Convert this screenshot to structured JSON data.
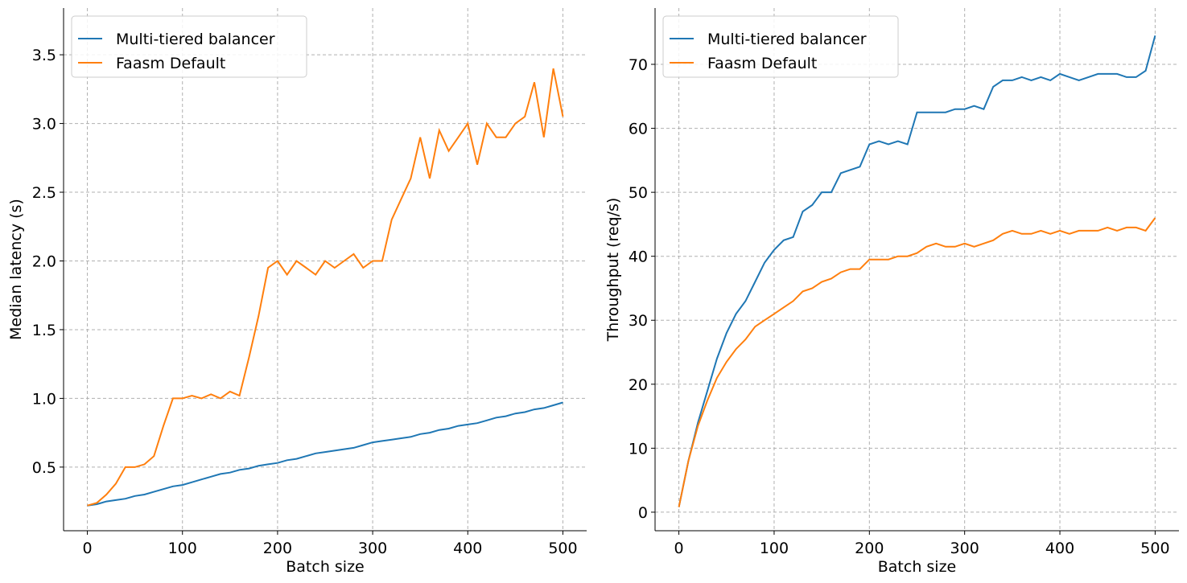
{
  "chart_data": [
    {
      "type": "line",
      "xlabel": "Batch size",
      "ylabel": "Median latency (s)",
      "x": [
        0,
        10,
        20,
        30,
        40,
        50,
        60,
        70,
        80,
        90,
        100,
        110,
        120,
        130,
        140,
        150,
        160,
        170,
        180,
        190,
        200,
        210,
        220,
        230,
        240,
        250,
        260,
        270,
        280,
        290,
        300,
        310,
        320,
        330,
        340,
        350,
        360,
        370,
        380,
        390,
        400,
        410,
        420,
        430,
        440,
        450,
        460,
        470,
        480,
        490,
        500
      ],
      "series": [
        {
          "name": "Multi-tiered balancer",
          "color": "#1f77b4",
          "values": [
            0.22,
            0.23,
            0.25,
            0.26,
            0.27,
            0.29,
            0.3,
            0.32,
            0.34,
            0.36,
            0.37,
            0.39,
            0.41,
            0.43,
            0.45,
            0.46,
            0.48,
            0.49,
            0.51,
            0.52,
            0.53,
            0.55,
            0.56,
            0.58,
            0.6,
            0.61,
            0.62,
            0.63,
            0.64,
            0.66,
            0.68,
            0.69,
            0.7,
            0.71,
            0.72,
            0.74,
            0.75,
            0.77,
            0.78,
            0.8,
            0.81,
            0.82,
            0.84,
            0.86,
            0.87,
            0.89,
            0.9,
            0.92,
            0.93,
            0.95,
            0.97
          ]
        },
        {
          "name": "Faasm Default",
          "color": "#ff7f0e",
          "values": [
            0.22,
            0.24,
            0.3,
            0.38,
            0.5,
            0.5,
            0.52,
            0.58,
            0.8,
            1.0,
            1.0,
            1.02,
            1.0,
            1.03,
            1.0,
            1.05,
            1.02,
            1.3,
            1.6,
            1.95,
            2.0,
            1.9,
            2.0,
            1.95,
            1.9,
            2.0,
            1.95,
            2.0,
            2.05,
            1.95,
            2.0,
            2.0,
            2.3,
            2.45,
            2.6,
            2.9,
            2.6,
            2.95,
            2.8,
            2.9,
            3.0,
            2.7,
            3.0,
            2.9,
            2.9,
            3.0,
            3.05,
            3.3,
            2.9,
            3.4,
            3.05
          ]
        }
      ],
      "xlim": [
        -25,
        525
      ],
      "ylim": [
        0.037,
        3.84
      ],
      "xticks": [
        0,
        100,
        200,
        300,
        400,
        500
      ],
      "yticks": [
        0.5,
        {
          "value": 1.0,
          "label": "1.0"
        },
        1.5,
        {
          "value": 2.0,
          "label": "2.0"
        },
        2.5,
        {
          "value": 3.0,
          "label": "3.0"
        },
        3.5
      ],
      "grid": true,
      "legend": "upper left"
    },
    {
      "type": "line",
      "xlabel": "Batch size",
      "ylabel": "Throughput (req/s)",
      "x": [
        0,
        10,
        20,
        30,
        40,
        50,
        60,
        70,
        80,
        90,
        100,
        110,
        120,
        130,
        140,
        150,
        160,
        170,
        180,
        190,
        200,
        210,
        220,
        230,
        240,
        250,
        260,
        270,
        280,
        290,
        300,
        310,
        320,
        330,
        340,
        350,
        360,
        370,
        380,
        390,
        400,
        410,
        420,
        430,
        440,
        450,
        460,
        470,
        480,
        490,
        500
      ],
      "series": [
        {
          "name": "Multi-tiered balancer",
          "color": "#1f77b4",
          "values": [
            0.8,
            8,
            14,
            19,
            24,
            28,
            31,
            33,
            36,
            39,
            41,
            42.5,
            43,
            47,
            48,
            50,
            50,
            53,
            53.5,
            54,
            57.5,
            58,
            57.5,
            58,
            57.5,
            62.5,
            62.5,
            62.5,
            62.5,
            63,
            63,
            63.5,
            63,
            66.5,
            67.5,
            67.5,
            68,
            67.5,
            68,
            67.5,
            68.5,
            68,
            67.5,
            68,
            68.5,
            68.5,
            68.5,
            68,
            68,
            69,
            74.5
          ]
        },
        {
          "name": "Faasm Default",
          "color": "#ff7f0e",
          "values": [
            0.8,
            8,
            13.5,
            17.5,
            21,
            23.5,
            25.5,
            27,
            29,
            30,
            31,
            32,
            33,
            34.5,
            35,
            36,
            36.5,
            37.5,
            38,
            38,
            39.5,
            39.5,
            39.5,
            40,
            40,
            40.5,
            41.5,
            42,
            41.5,
            41.5,
            42,
            41.5,
            42,
            42.5,
            43.5,
            44,
            43.5,
            43.5,
            44,
            43.5,
            44,
            43.5,
            44,
            44,
            44,
            44.5,
            44,
            44.5,
            44.5,
            44,
            46
          ]
        }
      ],
      "xlim": [
        -25,
        525
      ],
      "ylim": [
        -2.9,
        78.8
      ],
      "xticks": [
        0,
        100,
        200,
        300,
        400,
        500
      ],
      "yticks": [
        0,
        10,
        20,
        30,
        40,
        50,
        60,
        70
      ],
      "grid": true,
      "legend": "upper left"
    }
  ]
}
